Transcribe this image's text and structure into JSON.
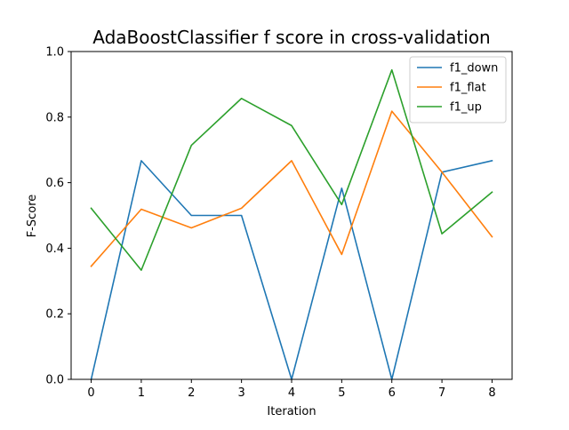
{
  "chart_data": {
    "type": "line",
    "title": "AdaBoostClassifier f score in cross-validation",
    "xlabel": "Iteration",
    "ylabel": "F-Score",
    "x": [
      0,
      1,
      2,
      3,
      4,
      5,
      6,
      7,
      8
    ],
    "xlim": [
      -0.4,
      8.4
    ],
    "ylim": [
      0,
      1
    ],
    "xticks": [
      "0",
      "1",
      "2",
      "3",
      "4",
      "5",
      "6",
      "7",
      "8"
    ],
    "yticks": [
      "0.0",
      "0.2",
      "0.4",
      "0.6",
      "0.8",
      "1.0"
    ],
    "grid": false,
    "legend_position": "top-right",
    "series": [
      {
        "name": "f1_down",
        "color": "#1f77b4",
        "values": [
          0.0,
          0.667,
          0.5,
          0.5,
          0.0,
          0.583,
          0.0,
          0.632,
          0.667
        ]
      },
      {
        "name": "f1_flat",
        "color": "#ff7f0e",
        "values": [
          0.345,
          0.519,
          0.462,
          0.522,
          0.667,
          0.381,
          0.818,
          0.632,
          0.435
        ]
      },
      {
        "name": "f1_up",
        "color": "#2ca02c",
        "values": [
          0.522,
          0.333,
          0.714,
          0.857,
          0.774,
          0.533,
          0.944,
          0.444,
          0.571
        ]
      }
    ]
  }
}
